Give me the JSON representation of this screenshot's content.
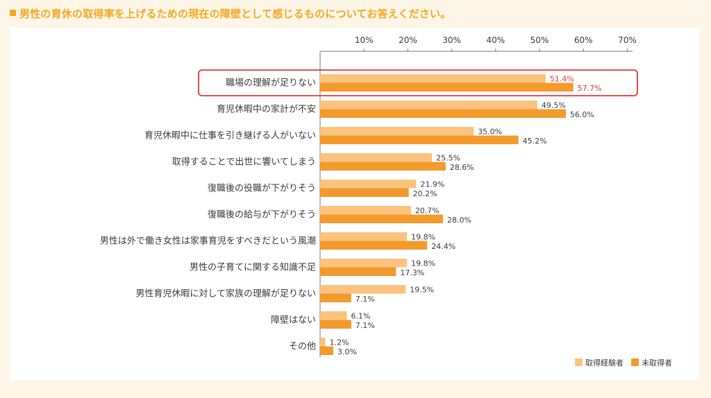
{
  "heading": "男性の育休の取得率を上げるための現在の障壁として感じるものについてお答えください。",
  "colors": {
    "heading": "#f5a623",
    "experienced": "#fbc37e",
    "not_experienced": "#f39a2c",
    "highlight": "#e8323c",
    "background": "#fdf6e6"
  },
  "chart_data": {
    "type": "bar",
    "orientation": "horizontal",
    "categories": [
      "職場の理解が足りない",
      "育児休暇中の家計が不安",
      "育児休暇中に仕事を引き継げる人がいない",
      "取得することで出世に響いてしまう",
      "復職後の役職が下がりそう",
      "復職後の給与が下がりそう",
      "男性は外で働き女性は家事育児をすべきだという風潮",
      "男性の子育てに関する知識不足",
      "男性育児休暇に対して家族の理解が足りない",
      "障壁はない",
      "その他"
    ],
    "series": [
      {
        "name": "取得経験者",
        "values": [
          51.4,
          49.5,
          35.0,
          25.5,
          21.9,
          20.7,
          19.8,
          19.8,
          19.5,
          6.1,
          1.2
        ],
        "labels": [
          "51.4%",
          "49.5%",
          "35.0%",
          "25.5%",
          "21.9%",
          "20.7%",
          "19.8%",
          "19.8%",
          "19.5%",
          "6.1%",
          "1.2%"
        ]
      },
      {
        "name": "未取得者",
        "values": [
          57.7,
          56.0,
          45.2,
          28.6,
          20.2,
          28.0,
          24.4,
          17.3,
          7.1,
          7.1,
          3.0
        ],
        "labels": [
          "57.7%",
          "56.0%",
          "45.2%",
          "28.6%",
          "20.2%",
          "28.0%",
          "24.4%",
          "17.3%",
          "7.1%",
          "7.1%",
          "3.0%"
        ]
      }
    ],
    "xlim": [
      0,
      70
    ],
    "xticks": [
      "10%",
      "20%",
      "30%",
      "40%",
      "50%",
      "60%",
      "70%"
    ],
    "highlighted_category": "職場の理解が足りない",
    "legend_position": "bottom-right",
    "grid": false
  }
}
